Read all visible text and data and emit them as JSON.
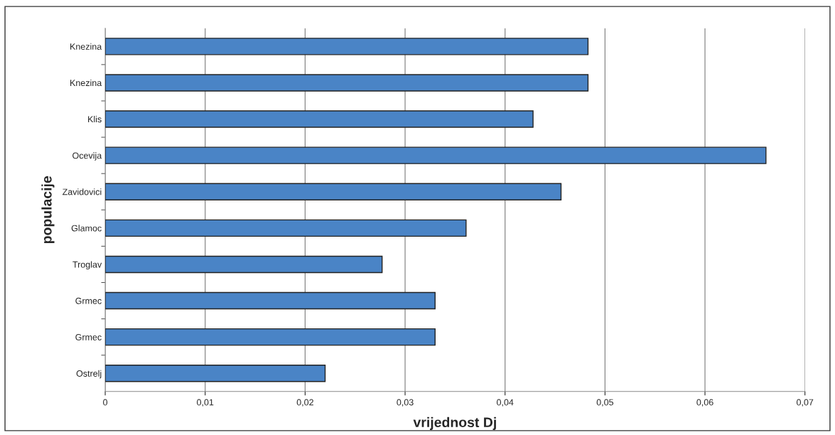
{
  "chart_data": {
    "type": "bar",
    "orientation": "horizontal",
    "xlabel": "vrijednost Dj",
    "ylabel": "populacije",
    "categories": [
      "Knezina",
      "Knezina",
      "Klis",
      "Ocevija",
      "Zavidovici",
      "Glamoc",
      "Troglav",
      "Grmec",
      "Grmec",
      "Ostrelj"
    ],
    "values": [
      0.0483,
      0.0483,
      0.0428,
      0.0661,
      0.0456,
      0.0361,
      0.0277,
      0.033,
      0.033,
      0.022
    ],
    "color": "#4a84c6",
    "xlim": [
      0,
      0.07
    ],
    "xticks": [
      0,
      {
        "value": 0.01,
        "label": "0,01"
      },
      {
        "value": 0.02,
        "label": "0,02"
      },
      {
        "value": 0.03,
        "label": "0,03"
      },
      {
        "value": 0.04,
        "label": "0,04"
      },
      {
        "value": 0.05,
        "label": "0,05"
      },
      {
        "value": 0.06,
        "label": "0,06"
      },
      {
        "value": 0.07,
        "label": "0,07"
      }
    ],
    "grid": "x",
    "legend": false
  }
}
